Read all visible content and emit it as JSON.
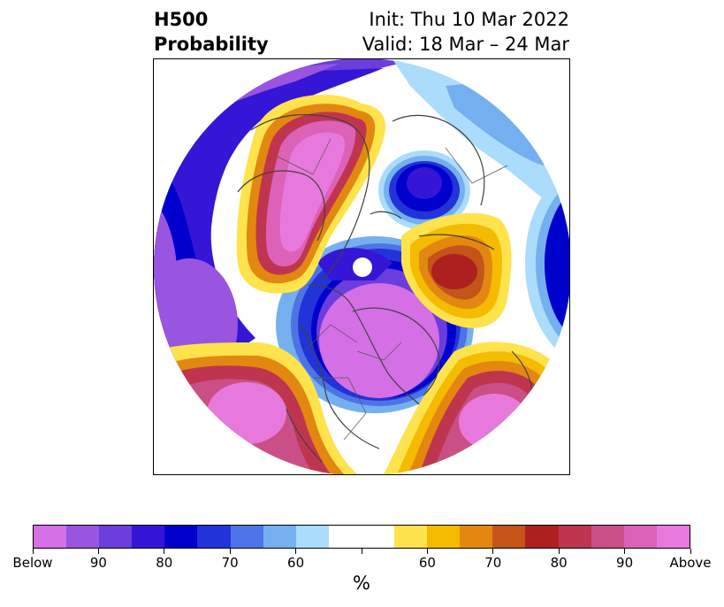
{
  "title": {
    "left_line1": "H500",
    "left_line2": "Probability",
    "right_line1": "Init: Thu 10 Mar 2022",
    "right_line2": "Valid: 18 Mar – 24 Mar"
  },
  "map": {
    "projection": "north-polar-stereographic",
    "field": "500 hPa height anomaly probability",
    "features": [
      {
        "region": "North Pacific / Alaska",
        "category": "below",
        "level": "high"
      },
      {
        "region": "Canada / Hudson Bay",
        "category": "below",
        "level": "90+"
      },
      {
        "region": "Western Siberia",
        "category": "below",
        "level": "90"
      },
      {
        "region": "Western Europe / North Atlantic",
        "category": "below",
        "level": "70-90"
      },
      {
        "region": "East Asia / Siberia",
        "category": "above",
        "level": "90+"
      },
      {
        "region": "Eastern Pacific / US West",
        "category": "above",
        "level": "80-90"
      },
      {
        "region": "Scandinavia / Northern Europe",
        "category": "above",
        "level": "80"
      },
      {
        "region": "Mid Atlantic",
        "category": "above",
        "level": "90+"
      }
    ]
  },
  "colorbar": {
    "colors": [
      "#d46fe5",
      "#9a55e0",
      "#6a3ddc",
      "#3516d6",
      "#0000cc",
      "#2233d9",
      "#4d74e6",
      "#74b0f0",
      "#acdcfb",
      "#ffffff",
      "#ffffff",
      "#ffe34d",
      "#f4bb00",
      "#e28810",
      "#c4541a",
      "#ae2020",
      "#bf3550",
      "#cb4f87",
      "#dc62b8",
      "#e879dc"
    ],
    "tick_labels": [
      "Below",
      "90",
      "80",
      "70",
      "60",
      "",
      "60",
      "70",
      "80",
      "90",
      "Above"
    ],
    "unit": "%"
  }
}
